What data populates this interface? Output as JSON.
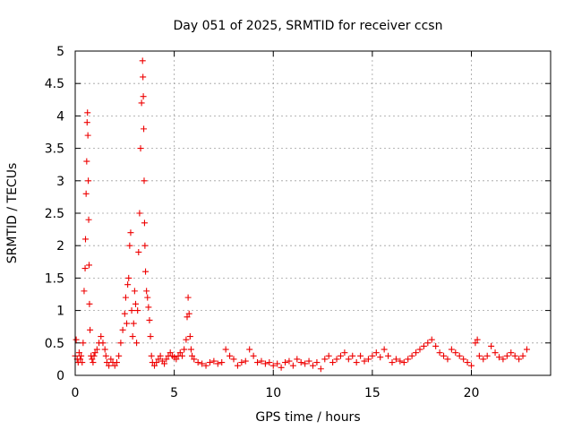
{
  "chart_data": {
    "type": "scatter",
    "title": "Day 051 of 2025, SRMTID for receiver ccsn",
    "xlabel": "GPS time / hours",
    "ylabel": "SRMTID / TECUs",
    "xlim": [
      0,
      24
    ],
    "ylim": [
      0,
      5
    ],
    "xticks": [
      0,
      5,
      10,
      15,
      20
    ],
    "yticks": [
      0,
      0.5,
      1,
      1.5,
      2,
      2.5,
      3,
      3.5,
      4,
      4.5,
      5
    ],
    "xtick_labels": [
      "0",
      "5",
      "10",
      "15",
      "20"
    ],
    "ytick_labels": [
      "0",
      "0.5",
      "1",
      "1.5",
      "2",
      "2.5",
      "3",
      "3.5",
      "4",
      "4.5",
      "5"
    ],
    "grid": true,
    "marker": "plus",
    "color": "#ee0000",
    "series": [
      {
        "name": "SRMTID",
        "x": [
          0.0,
          0.05,
          0.1,
          0.15,
          0.2,
          0.25,
          0.3,
          0.35,
          0.4,
          0.45,
          0.5,
          0.52,
          0.55,
          0.58,
          0.6,
          0.62,
          0.64,
          0.66,
          0.68,
          0.7,
          0.72,
          0.75,
          0.8,
          0.85,
          0.9,
          0.95,
          1.0,
          1.1,
          1.2,
          1.3,
          1.4,
          1.5,
          1.55,
          1.6,
          1.7,
          1.8,
          1.9,
          2.0,
          2.1,
          2.2,
          2.3,
          2.4,
          2.5,
          2.55,
          2.6,
          2.65,
          2.7,
          2.75,
          2.8,
          2.85,
          2.9,
          2.95,
          3.0,
          3.05,
          3.1,
          3.15,
          3.2,
          3.25,
          3.3,
          3.35,
          3.4,
          3.42,
          3.44,
          3.46,
          3.48,
          3.5,
          3.52,
          3.55,
          3.6,
          3.65,
          3.7,
          3.75,
          3.8,
          3.85,
          3.9,
          4.0,
          4.1,
          4.2,
          4.3,
          4.4,
          4.5,
          4.6,
          4.7,
          4.8,
          4.9,
          5.0,
          5.1,
          5.2,
          5.3,
          5.4,
          5.5,
          5.6,
          5.65,
          5.7,
          5.75,
          5.8,
          5.85,
          5.9,
          6.0,
          6.2,
          6.4,
          6.6,
          6.8,
          7.0,
          7.2,
          7.4,
          7.6,
          7.8,
          8.0,
          8.2,
          8.4,
          8.6,
          8.8,
          9.0,
          9.2,
          9.4,
          9.6,
          9.8,
          10.0,
          10.2,
          10.4,
          10.6,
          10.8,
          11.0,
          11.2,
          11.4,
          11.6,
          11.8,
          12.0,
          12.2,
          12.4,
          12.6,
          12.8,
          13.0,
          13.2,
          13.4,
          13.6,
          13.8,
          14.0,
          14.2,
          14.4,
          14.6,
          14.8,
          15.0,
          15.2,
          15.4,
          15.6,
          15.8,
          16.0,
          16.2,
          16.4,
          16.6,
          16.8,
          17.0,
          17.2,
          17.4,
          17.6,
          17.8,
          18.0,
          18.2,
          18.4,
          18.6,
          18.8,
          19.0,
          19.2,
          19.4,
          19.6,
          19.8,
          20.0,
          20.2,
          20.3,
          20.4,
          20.6,
          20.8,
          21.0,
          21.2,
          21.4,
          21.6,
          21.8,
          22.0,
          22.2,
          22.4,
          22.6,
          22.8
        ],
        "y": [
          0.3,
          0.55,
          0.25,
          0.2,
          0.35,
          0.25,
          0.3,
          0.2,
          0.5,
          1.3,
          1.65,
          2.1,
          2.8,
          3.3,
          3.9,
          4.05,
          3.7,
          3.0,
          2.4,
          1.7,
          1.1,
          0.7,
          0.3,
          0.25,
          0.2,
          0.3,
          0.35,
          0.4,
          0.5,
          0.6,
          0.5,
          0.4,
          0.3,
          0.2,
          0.15,
          0.25,
          0.2,
          0.15,
          0.2,
          0.3,
          0.5,
          0.7,
          0.95,
          1.2,
          0.8,
          1.4,
          1.5,
          2.0,
          2.2,
          1.0,
          0.6,
          0.8,
          1.3,
          1.1,
          0.5,
          1.0,
          1.9,
          2.5,
          3.5,
          4.2,
          4.85,
          4.6,
          4.3,
          3.8,
          3.0,
          2.35,
          2.0,
          1.6,
          1.3,
          1.2,
          1.05,
          0.85,
          0.6,
          0.3,
          0.2,
          0.15,
          0.2,
          0.25,
          0.3,
          0.22,
          0.18,
          0.25,
          0.3,
          0.35,
          0.3,
          0.28,
          0.25,
          0.3,
          0.35,
          0.3,
          0.4,
          0.55,
          0.9,
          1.2,
          0.95,
          0.6,
          0.4,
          0.3,
          0.25,
          0.2,
          0.18,
          0.15,
          0.2,
          0.22,
          0.18,
          0.2,
          0.4,
          0.3,
          0.25,
          0.15,
          0.2,
          0.22,
          0.4,
          0.3,
          0.2,
          0.22,
          0.18,
          0.2,
          0.15,
          0.18,
          0.12,
          0.2,
          0.22,
          0.15,
          0.25,
          0.2,
          0.18,
          0.22,
          0.15,
          0.2,
          0.1,
          0.25,
          0.3,
          0.2,
          0.25,
          0.3,
          0.35,
          0.25,
          0.3,
          0.2,
          0.3,
          0.22,
          0.25,
          0.3,
          0.35,
          0.28,
          0.4,
          0.3,
          0.2,
          0.25,
          0.22,
          0.2,
          0.25,
          0.3,
          0.35,
          0.4,
          0.45,
          0.5,
          0.55,
          0.45,
          0.35,
          0.3,
          0.25,
          0.4,
          0.35,
          0.3,
          0.25,
          0.2,
          0.15,
          0.5,
          0.55,
          0.3,
          0.25,
          0.3,
          0.45,
          0.35,
          0.28,
          0.25,
          0.3,
          0.35,
          0.3,
          0.25,
          0.3,
          0.4
        ]
      }
    ]
  }
}
